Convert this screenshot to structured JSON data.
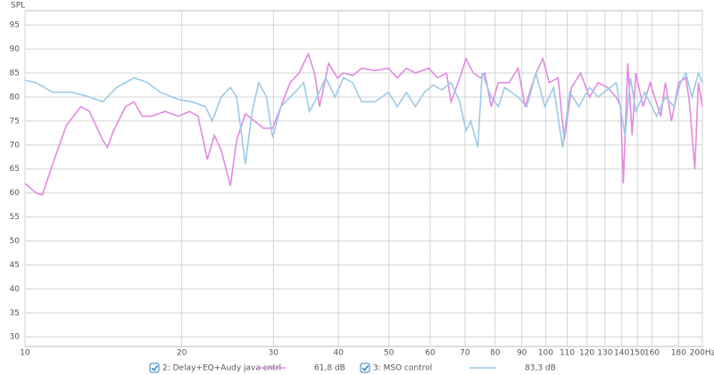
{
  "chart_data": {
    "type": "line",
    "y_label": "SPL",
    "log_x": true,
    "grid": true,
    "xlim": [
      10,
      200
    ],
    "ylim": [
      28,
      98
    ],
    "xticks": [
      10,
      20,
      30,
      40,
      50,
      60,
      70,
      80,
      90,
      100,
      110,
      120,
      130,
      140,
      150,
      160,
      180,
      {
        "value": 200,
        "label": "200Hz"
      }
    ],
    "yticks": [
      30,
      35,
      40,
      45,
      50,
      55,
      60,
      65,
      70,
      75,
      80,
      85,
      90,
      95
    ],
    "series": [
      {
        "name": "2: Delay+EQ+Audy java cntrl",
        "readout": "61,8 dB",
        "color": "#e28ae0",
        "x": [
          10,
          10.5,
          10.8,
          11.3,
          12.0,
          12.8,
          13.3,
          14.1,
          14.4,
          14.8,
          15.6,
          16.2,
          16.8,
          17.5,
          18.6,
          19.7,
          20.7,
          21.5,
          22.4,
          23.1,
          23.8,
          24.8,
          25.5,
          26.5,
          27.6,
          28.7,
          29.9,
          31.0,
          32.3,
          33.6,
          35.0,
          36.0,
          36.8,
          38.3,
          39.8,
          40.9,
          42.6,
          44.3,
          47.0,
          49.9,
          51.9,
          54.0,
          56.2,
          59.6,
          62.0,
          64.5,
          65.8,
          68.4,
          70.3,
          72.6,
          75.0,
          76.4,
          78.6,
          81.1,
          85.1,
          88.5,
          91.3,
          95.8,
          98.8,
          101.6,
          105.7,
          108.6,
          112.1,
          116.7,
          121.4,
          126.2,
          131.4,
          136.6,
          139.3,
          141.0,
          143.8,
          146.6,
          149.0,
          153.8,
          158.7,
          166.4,
          169.8,
          174.5,
          180.1,
          185.9,
          188.8,
          193.4,
          196.5,
          200
        ],
        "values": [
          62,
          60,
          59.6,
          66,
          74,
          78,
          77,
          71,
          69.5,
          73,
          78,
          79,
          76,
          76,
          77,
          76,
          77,
          76,
          67,
          72,
          69,
          61.5,
          71,
          76.5,
          75,
          73.5,
          73.5,
          78,
          83,
          85,
          89,
          85,
          78,
          87,
          84,
          85,
          84.5,
          86,
          85.5,
          86,
          84,
          86,
          85,
          86,
          84,
          85,
          79,
          84,
          88,
          85,
          84,
          85,
          78,
          83,
          83,
          86,
          78,
          85,
          88,
          83,
          84,
          71,
          82,
          85,
          80,
          83,
          82,
          80,
          78,
          62,
          87,
          72,
          85,
          78,
          83,
          76,
          83,
          75,
          83,
          84,
          79,
          65,
          83,
          78
        ]
      },
      {
        "name": "3: MSO control",
        "readout": "83,3 dB",
        "color": "#9ccbe6",
        "x": [
          10,
          10.5,
          11.3,
          12.3,
          13.3,
          14.1,
          15.0,
          16.2,
          17.2,
          18.2,
          19.7,
          20.9,
          22.2,
          22.9,
          23.8,
          24.8,
          25.5,
          26.5,
          27.3,
          28.1,
          29.1,
          29.9,
          31.0,
          33.0,
          34.3,
          35.2,
          36.4,
          37.8,
          39.4,
          40.9,
          42.6,
          44.3,
          47.0,
          49.9,
          51.9,
          54.0,
          56.2,
          58.5,
          60.8,
          63.2,
          65.8,
          68.4,
          70.3,
          71.8,
          74.1,
          75.5,
          78.6,
          81.1,
          83.4,
          88.5,
          92.0,
          95.8,
          99.6,
          103.6,
          107.8,
          111.2,
          115.8,
          121.4,
          126.2,
          136.6,
          142.1,
          145.5,
          149.0,
          155.0,
          163.3,
          169.8,
          176.6,
          181.6,
          185.9,
          191.0,
          196.5,
          200
        ],
        "values": [
          83.5,
          83,
          81,
          81,
          80,
          79,
          82,
          84,
          83,
          81,
          79.5,
          79,
          78,
          75,
          80,
          82,
          80,
          66,
          77,
          83,
          80,
          71.5,
          78,
          81,
          83,
          77,
          80,
          84,
          80,
          84,
          83,
          79,
          79,
          81,
          78,
          81,
          78,
          81,
          82.5,
          81.5,
          83,
          79,
          73,
          75,
          69.5,
          85,
          80,
          78,
          82,
          80,
          78,
          85,
          78,
          82,
          69.5,
          81,
          78,
          82,
          80,
          83,
          72,
          84,
          77,
          81,
          76,
          80,
          78,
          83,
          85,
          80,
          85,
          83
        ]
      }
    ]
  }
}
